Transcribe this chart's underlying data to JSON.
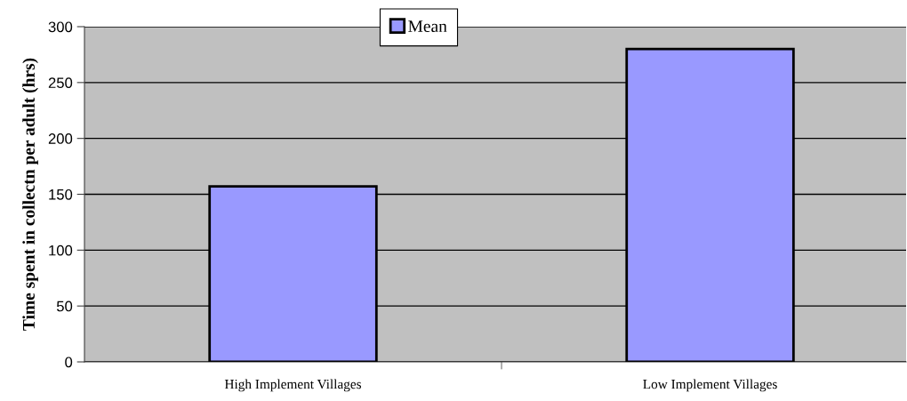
{
  "chart_data": {
    "type": "bar",
    "ylabel": "Time spent in collectn per adult (hrs)",
    "categories": [
      "High Implement Villages",
      "Low Implement Villages"
    ],
    "series": [
      {
        "name": "Mean",
        "color": "#9999ff",
        "values": [
          157,
          280
        ]
      }
    ],
    "ylim": [
      0,
      300
    ],
    "yticks": [
      0,
      50,
      100,
      150,
      200,
      250,
      300
    ],
    "grid": "y",
    "legend": "top"
  }
}
